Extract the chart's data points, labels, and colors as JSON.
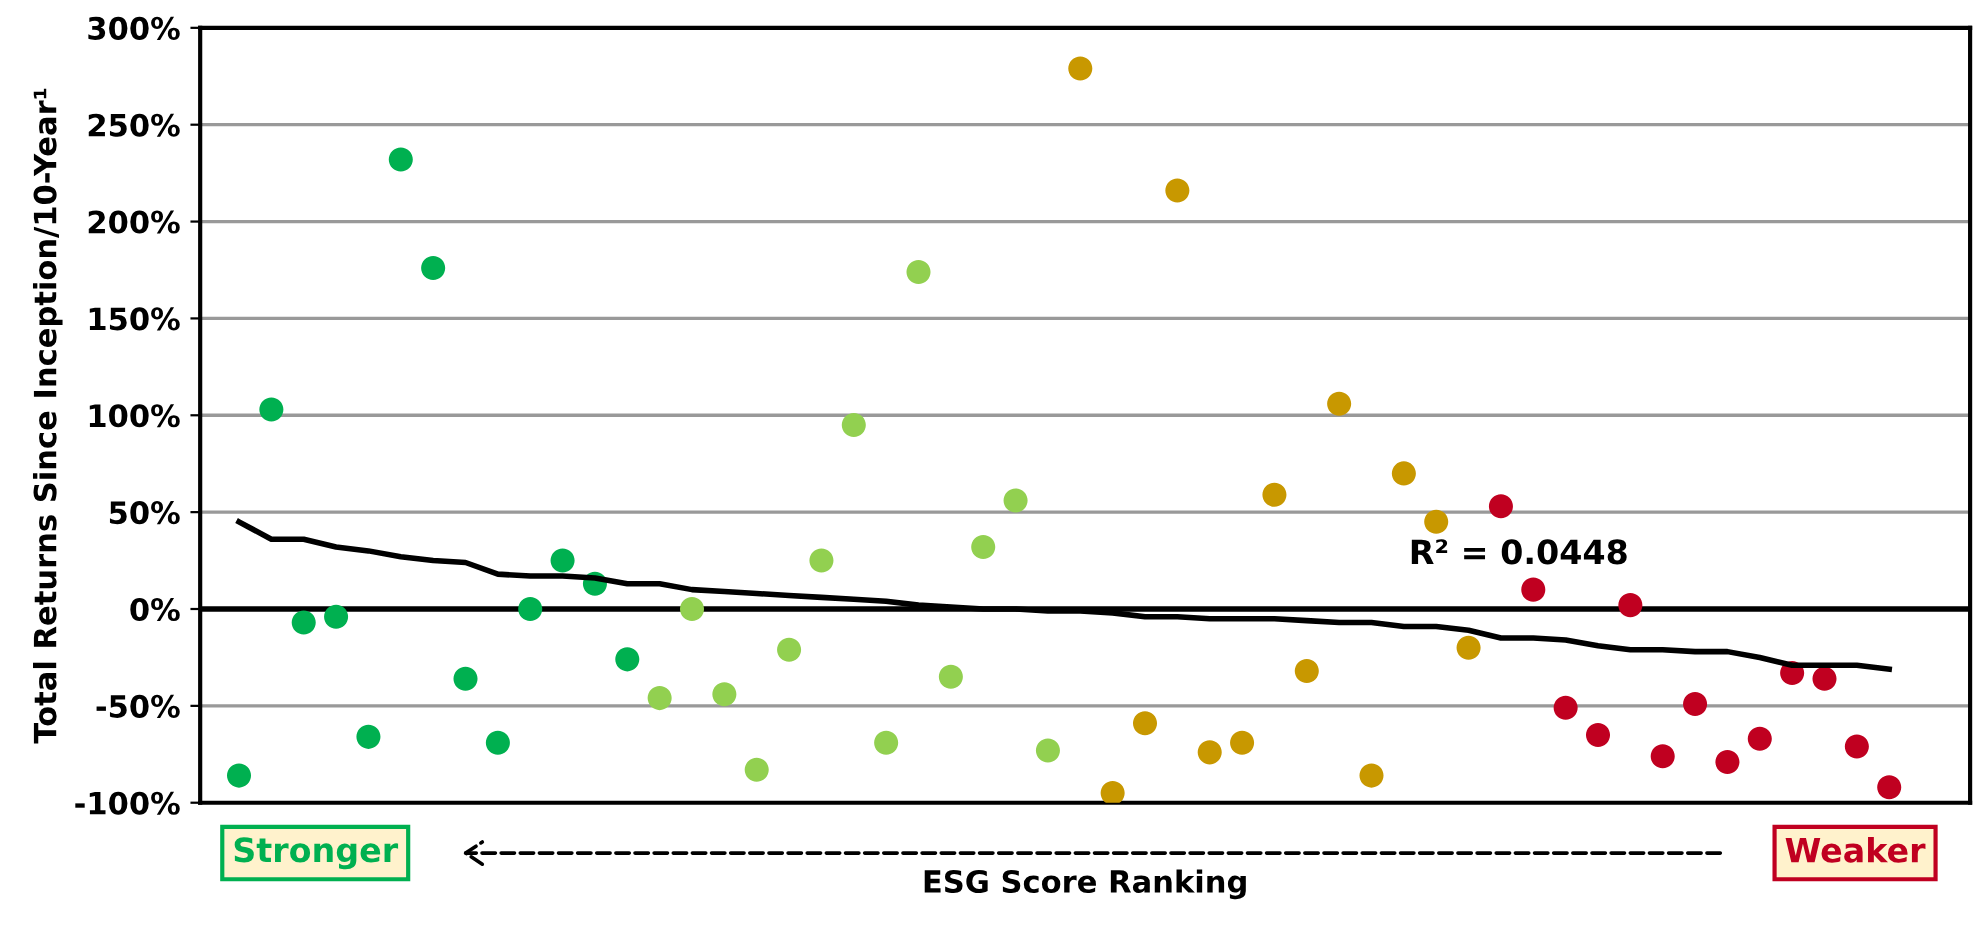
{
  "chart_data": {
    "type": "scatter",
    "ylabel": "Total Returns Since Inception/10-Year¹",
    "xlabel": "ESG Score Ranking",
    "annotations": [
      "R² = 0.0448",
      "Stronger",
      "Weaker"
    ],
    "categories": [
      null,
      null,
      null,
      null,
      null,
      null,
      null,
      null,
      null,
      null,
      null,
      null,
      null,
      null,
      null,
      null,
      null,
      null,
      null,
      null,
      null,
      null,
      null,
      null,
      null,
      null,
      null,
      null,
      null,
      null,
      null,
      null,
      null,
      null,
      null,
      null,
      null,
      null,
      null,
      null,
      null,
      null,
      null,
      null,
      null,
      null,
      null,
      null,
      null,
      null,
      null,
      null
    ],
    "ylim": [
      -100,
      300
    ],
    "yticks": [
      {
        "value": -100,
        "label": "-100%"
      },
      {
        "value": -50,
        "label": "-50%"
      },
      {
        "value": 0,
        "label": "0%"
      },
      {
        "value": 50,
        "label": "50%"
      },
      {
        "value": 100,
        "label": "100%"
      },
      {
        "value": 150,
        "label": "150%"
      },
      {
        "value": 200,
        "label": "200%"
      },
      {
        "value": 250,
        "label": "250%"
      },
      {
        "value": 300,
        "label": "300%"
      }
    ],
    "grid": "y",
    "marker": "circle",
    "legend": false,
    "ref_lines": [
      {
        "axis": "y",
        "value": 0,
        "color": "#000000"
      }
    ],
    "series": [
      {
        "color": "#00b050",
        "values": [
          -86,
          103,
          -7,
          -4,
          -66,
          232,
          176,
          -36,
          -69,
          0,
          25,
          13,
          -26,
          null,
          null,
          null,
          null,
          null,
          null,
          null,
          null,
          null,
          null,
          null,
          null,
          null,
          null,
          null,
          null,
          null,
          null,
          null,
          null,
          null,
          null,
          null,
          null,
          null,
          null,
          null,
          null,
          null,
          null,
          null,
          null,
          null,
          null,
          null,
          null,
          null,
          null,
          null
        ]
      },
      {
        "color": "#92d050",
        "values": [
          null,
          null,
          null,
          null,
          null,
          null,
          null,
          null,
          null,
          null,
          null,
          null,
          null,
          -46,
          0,
          -44,
          -83,
          -21,
          25,
          95,
          -69,
          174,
          -35,
          32,
          56,
          -73,
          null,
          null,
          null,
          null,
          null,
          null,
          null,
          null,
          null,
          null,
          null,
          null,
          null,
          null,
          null,
          null,
          null,
          null,
          null,
          null,
          null,
          null,
          null,
          null,
          null,
          null
        ]
      },
      {
        "color": "#c89800",
        "values": [
          null,
          null,
          null,
          null,
          null,
          null,
          null,
          null,
          null,
          null,
          null,
          null,
          null,
          null,
          null,
          null,
          null,
          null,
          null,
          null,
          null,
          null,
          null,
          null,
          null,
          null,
          279,
          -95,
          -59,
          216,
          -74,
          -69,
          59,
          -32,
          106,
          -86,
          70,
          45,
          -20,
          null,
          null,
          null,
          null,
          null,
          null,
          null,
          null,
          null,
          null,
          null,
          null,
          null
        ]
      },
      {
        "color": "#c00020",
        "values": [
          null,
          null,
          null,
          null,
          null,
          null,
          null,
          null,
          null,
          null,
          null,
          null,
          null,
          null,
          null,
          null,
          null,
          null,
          null,
          null,
          null,
          null,
          null,
          null,
          null,
          null,
          null,
          null,
          null,
          null,
          null,
          null,
          null,
          null,
          null,
          null,
          null,
          null,
          null,
          53,
          10,
          -51,
          -65,
          2,
          -76,
          -49,
          -79,
          -67,
          -33,
          -36,
          -71,
          -92
        ]
      },
      {
        "type": "line",
        "color": "#000000",
        "marker": "none",
        "line_style": "solid",
        "values": [
          45,
          36,
          36,
          32,
          30,
          27,
          25,
          24,
          18,
          17,
          17,
          16,
          13,
          13,
          10,
          9,
          8,
          7,
          6,
          5,
          4,
          2,
          1,
          0,
          0,
          -1,
          -1,
          -2,
          -4,
          -4,
          -5,
          -5,
          -5,
          -6,
          -7,
          -7,
          -9,
          -9,
          -11,
          -15,
          -15,
          -16,
          -19,
          -21,
          -21,
          -22,
          -22,
          -25,
          -29,
          -29,
          -29,
          -31
        ]
      }
    ]
  }
}
